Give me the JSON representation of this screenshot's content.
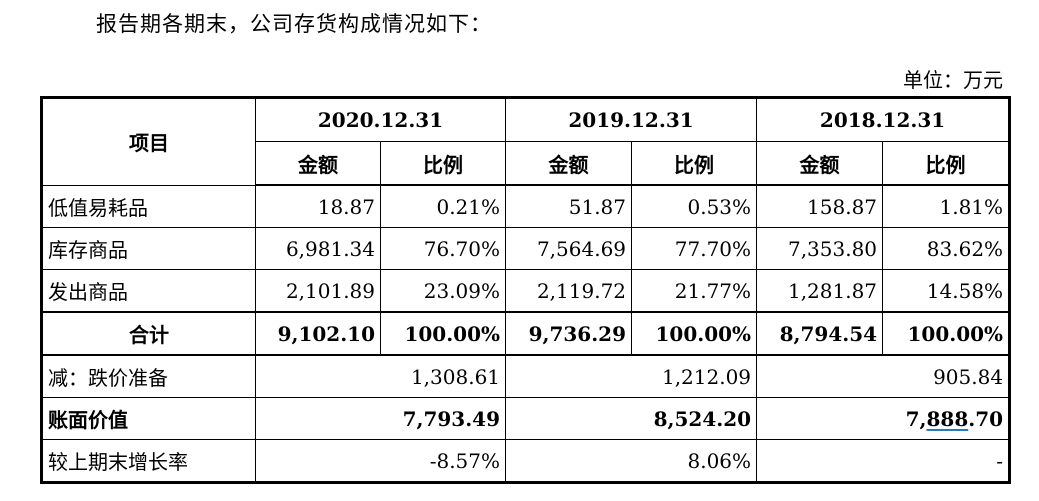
{
  "intro": "报告期各期末，公司存货构成情况如下：",
  "unit": "单位：万元",
  "table": {
    "item_header": "项目",
    "periods": [
      "2020.12.31",
      "2019.12.31",
      "2018.12.31"
    ],
    "sub_headers": {
      "amount": "金额",
      "ratio": "比例"
    },
    "rows": [
      {
        "label": "低值易耗品",
        "values": [
          "18.87",
          "0.21%",
          "51.87",
          "0.53%",
          "158.87",
          "1.81%"
        ]
      },
      {
        "label": "库存商品",
        "values": [
          "6,981.34",
          "76.70%",
          "7,564.69",
          "77.70%",
          "7,353.80",
          "83.62%"
        ]
      },
      {
        "label": "发出商品",
        "values": [
          "2,101.89",
          "23.09%",
          "2,119.72",
          "21.77%",
          "1,281.87",
          "14.58%"
        ]
      }
    ],
    "total": {
      "label": "合计",
      "values": [
        "9,102.10",
        "100.00%",
        "9,736.29",
        "100.00%",
        "8,794.54",
        "100.00%"
      ]
    },
    "reserve": {
      "label": "减：跌价准备",
      "values": [
        "1,308.61",
        "1,212.09",
        "905.84"
      ]
    },
    "book_value": {
      "label": "账面价值",
      "values": [
        "7,793.49",
        "8,524.20"
      ],
      "last_prefix": "7,",
      "last_underlined": "888",
      "last_suffix": ".70"
    },
    "growth": {
      "label": "较上期末增长率",
      "values": [
        "-8.57%",
        "8.06%",
        "-"
      ]
    }
  }
}
